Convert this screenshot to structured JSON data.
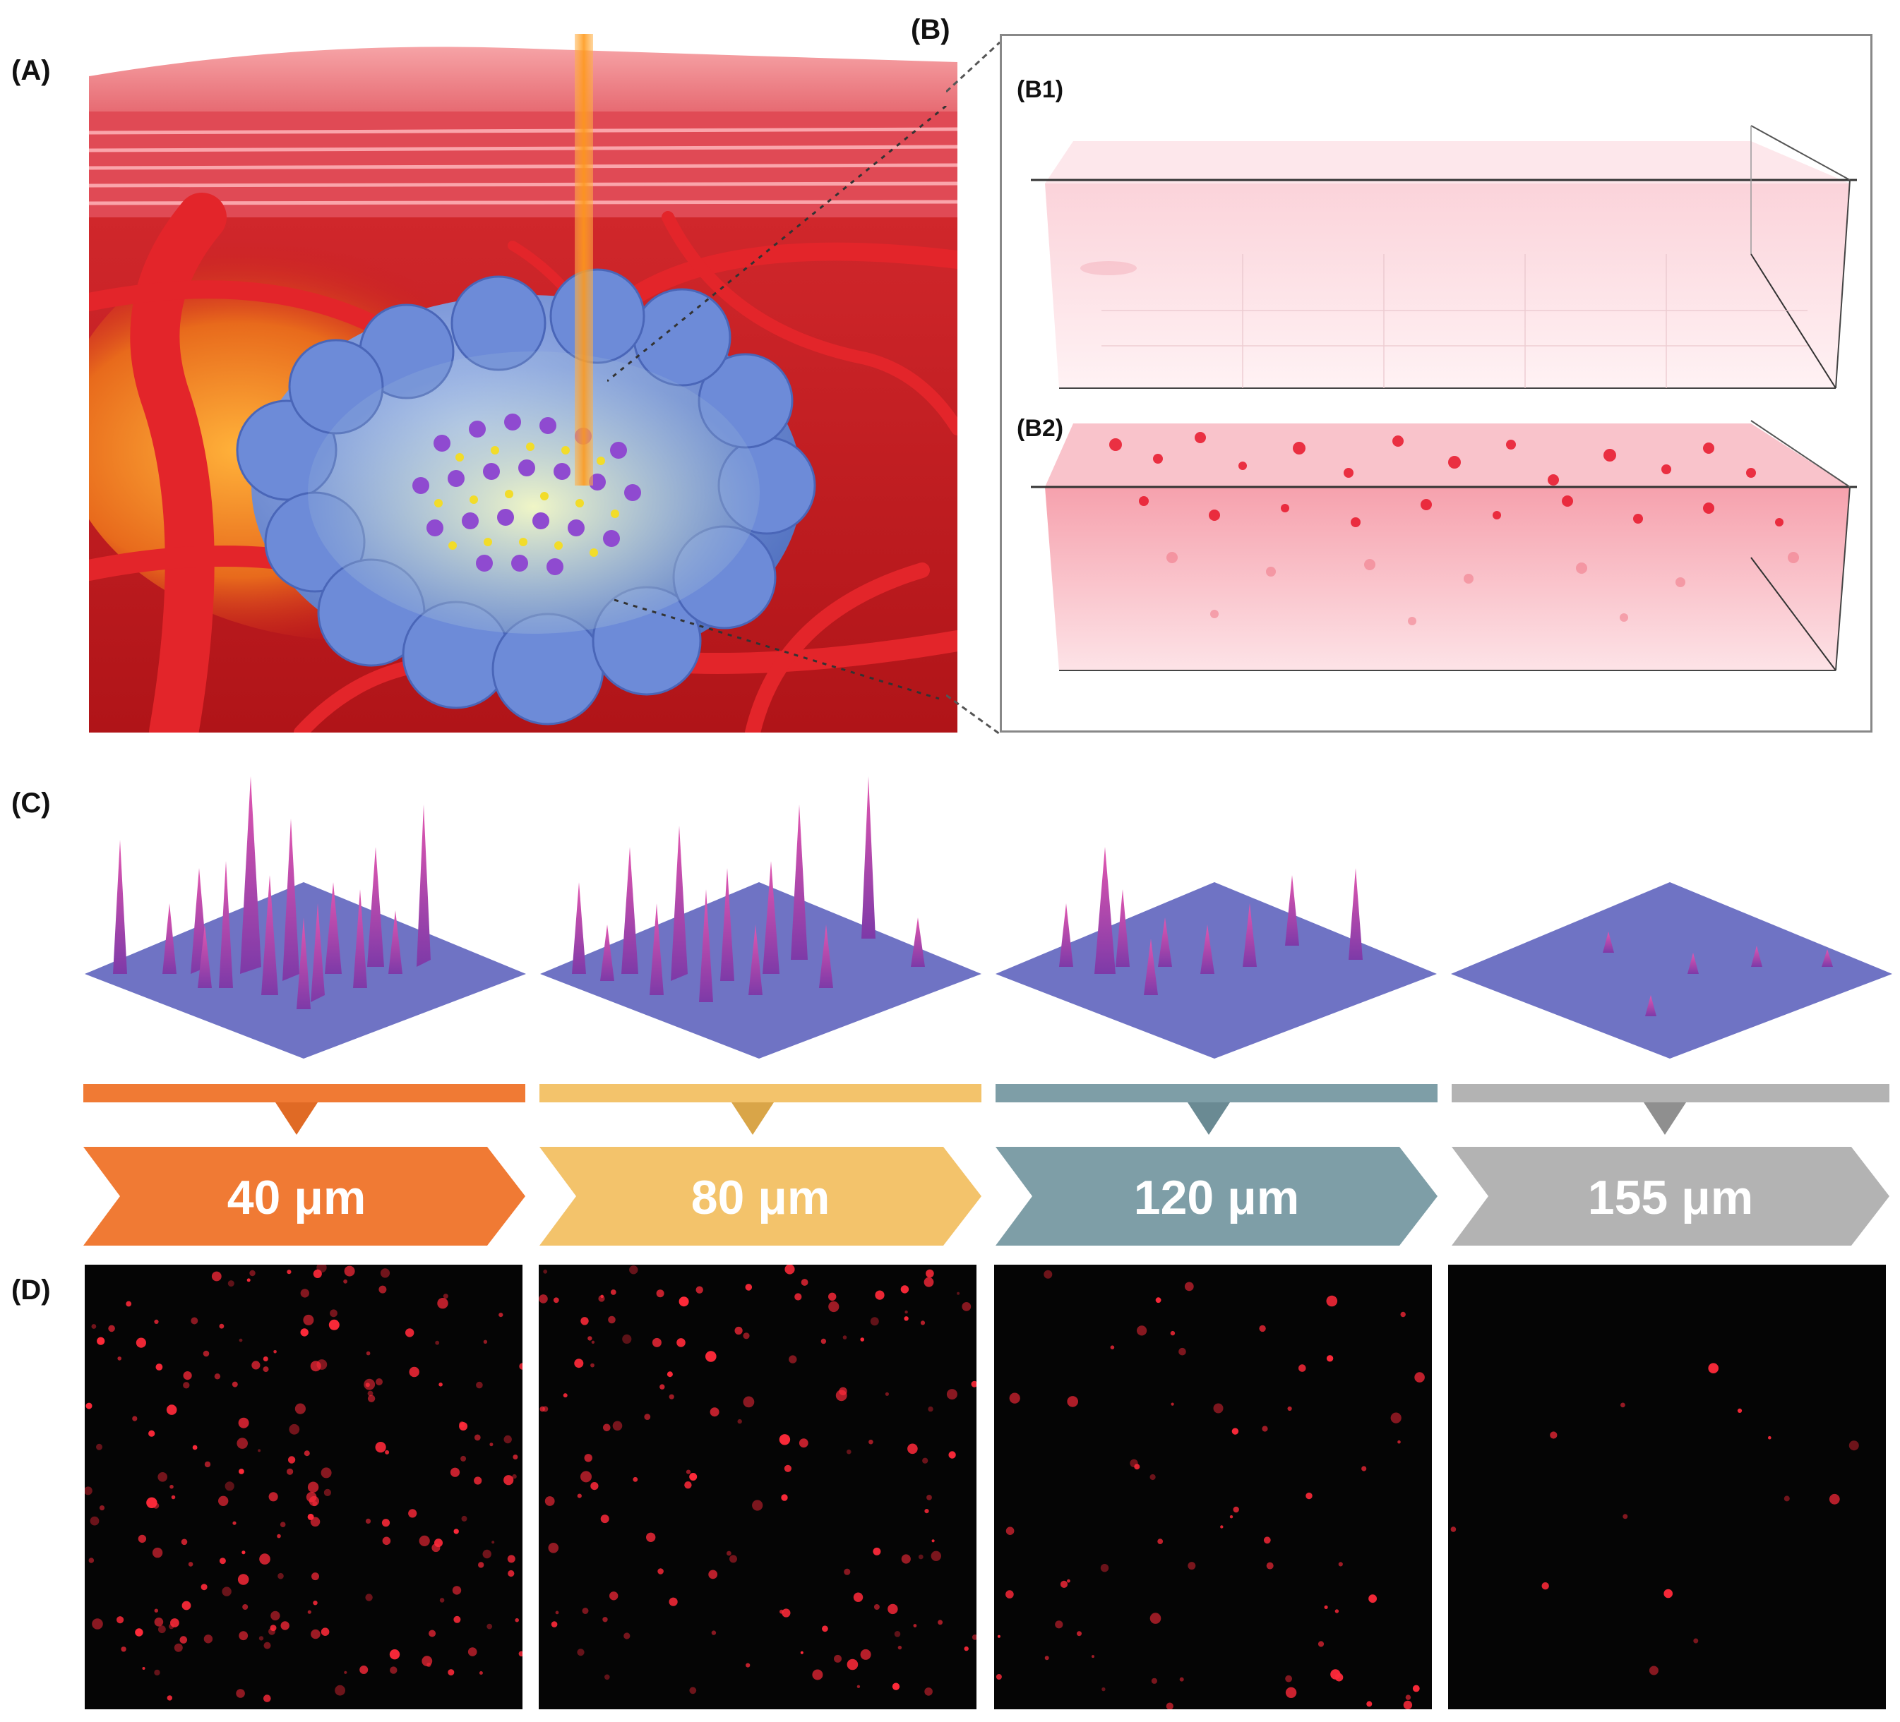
{
  "labels": {
    "panel_a": "(A)",
    "panel_b": "(B)",
    "panel_b1": "(B1)",
    "panel_b2": "(B2)",
    "panel_c": "(C)",
    "panel_d": "(D)"
  },
  "depths": [
    {
      "label": "40 μm",
      "color": "#f07a34",
      "marker": "#e06a25",
      "spot_level": 1.0
    },
    {
      "label": "80 μm",
      "color": "#f3c36b",
      "marker": "#d9a548",
      "spot_level": 0.7
    },
    {
      "label": "120 μm",
      "color": "#7e9ea7",
      "marker": "#6a8a93",
      "spot_level": 0.35
    },
    {
      "label": "155 μm",
      "color": "#b3b3b3",
      "marker": "#8f8f8f",
      "spot_level": 0.08
    }
  ],
  "colors": {
    "skin_top": "#f27a85",
    "tissue": "#c81a1e",
    "tumor": "#6f8fd6",
    "fluorescence": "#ff2a3a",
    "surface_plot_base": "#6f73c4",
    "surface_plot_peak": "#d04aa8"
  }
}
